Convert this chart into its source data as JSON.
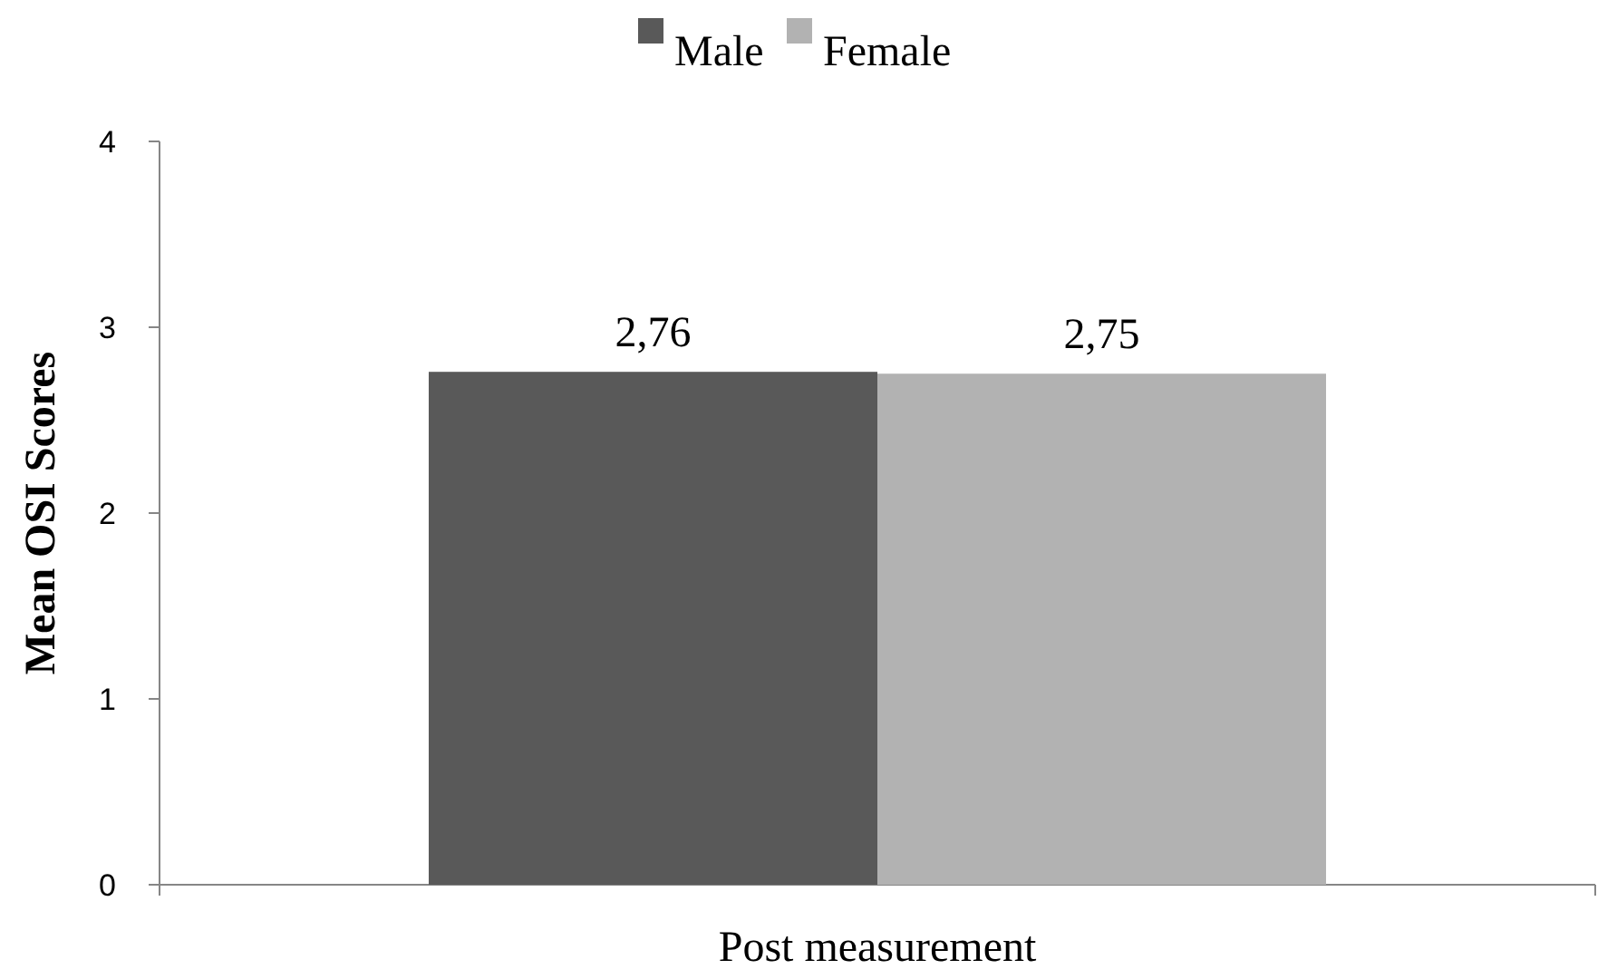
{
  "chart_data": {
    "type": "bar",
    "ylabel": "Mean OSI Scores",
    "categories": [
      "Post measurement"
    ],
    "series": [
      {
        "name": "Male",
        "color": "#595959",
        "values": [
          2.76
        ],
        "value_labels": [
          "2,76"
        ]
      },
      {
        "name": "Female",
        "color": "#b2b2b2",
        "values": [
          2.75
        ],
        "value_labels": [
          "2,75"
        ]
      }
    ],
    "ylim": [
      0,
      4
    ],
    "yticks": [
      0,
      1,
      2,
      3,
      4
    ],
    "legend": "top",
    "grid": false
  }
}
